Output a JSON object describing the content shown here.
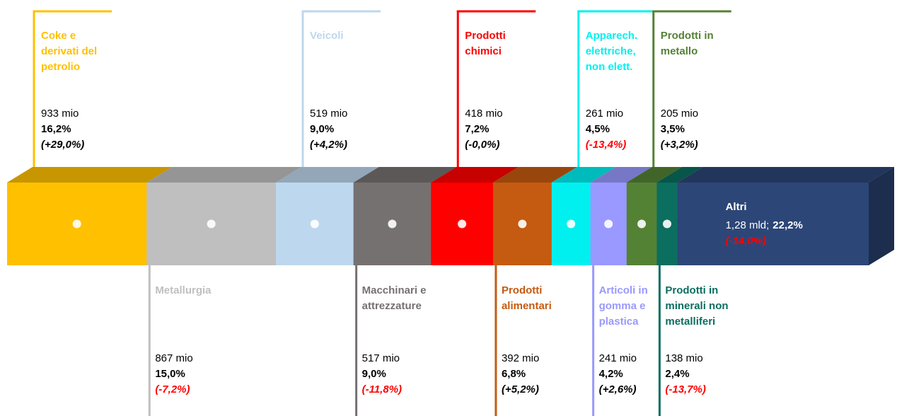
{
  "chart_data": {
    "type": "segmented-bar",
    "segments": [
      {
        "name": "Coke e derivati del petrolio",
        "color": "#ffc000",
        "position": "top",
        "amount": 933,
        "amount_label": "933 mio",
        "share": 16.2,
        "share_label": "16,2%",
        "change": 29.0,
        "change_label": "(+29,0%)"
      },
      {
        "name": "Metallurgia",
        "color": "#bfbfbf",
        "position": "bottom",
        "amount": 867,
        "amount_label": "867 mio",
        "share": 15.0,
        "share_label": "15,0%",
        "change": -7.2,
        "change_label": "(-7,2%)"
      },
      {
        "name": "Veicoli",
        "color": "#bdd7ee",
        "position": "top",
        "amount": 519,
        "amount_label": "519 mio",
        "share": 9.0,
        "share_label": "9,0%",
        "change": 4.2,
        "change_label": "(+4,2%)"
      },
      {
        "name": "Macchinari e attrezzature",
        "color": "#767171",
        "position": "bottom",
        "amount": 517,
        "amount_label": "517 mio",
        "share": 9.0,
        "share_label": "9,0%",
        "change": -11.8,
        "change_label": "(-11,8%)"
      },
      {
        "name": "Prodotti chimici",
        "color": "#ff0000",
        "position": "top",
        "amount": 418,
        "amount_label": "418 mio",
        "share": 7.2,
        "share_label": "7,2%",
        "change": -0.0,
        "change_label": "(-0,0%)"
      },
      {
        "name": "Prodotti alimentari",
        "color": "#c55a11",
        "position": "bottom",
        "amount": 392,
        "amount_label": "392 mio",
        "share": 6.8,
        "share_label": "6,8%",
        "change": 5.2,
        "change_label": "(+5,2%)"
      },
      {
        "name": "Apparech. elettriche, non elett.",
        "color": "#00f0f0",
        "position": "top",
        "amount": 261,
        "amount_label": "261 mio",
        "share": 4.5,
        "share_label": "4,5%",
        "change": -13.4,
        "change_label": "(-13,4%)"
      },
      {
        "name": "Articoli in gomma e plastica",
        "color": "#9999ff",
        "position": "bottom",
        "amount": 241,
        "amount_label": "241 mio",
        "share": 4.2,
        "share_label": "4,2%",
        "change": 2.6,
        "change_label": "(+2,6%)"
      },
      {
        "name": "Prodotti in metallo",
        "color": "#548235",
        "position": "top",
        "amount": 205,
        "amount_label": "205 mio",
        "share": 3.5,
        "share_label": "3,5%",
        "change": 3.2,
        "change_label": "(+3,2%)"
      },
      {
        "name": "Prodotti in minerali non metalliferi",
        "color": "#0b6e5f",
        "position": "bottom",
        "amount": 138,
        "amount_label": "138 mio",
        "share": 2.4,
        "share_label": "2,4%",
        "change": -13.7,
        "change_label": "(-13,7%)"
      },
      {
        "name": "Altri",
        "color": "#2c4677",
        "position": "inside",
        "amount": 1280,
        "amount_label": "1,28 mld;",
        "share": 22.2,
        "share_label": "22,2%",
        "change": -14.0,
        "change_label": "(-14,0%)"
      }
    ]
  }
}
